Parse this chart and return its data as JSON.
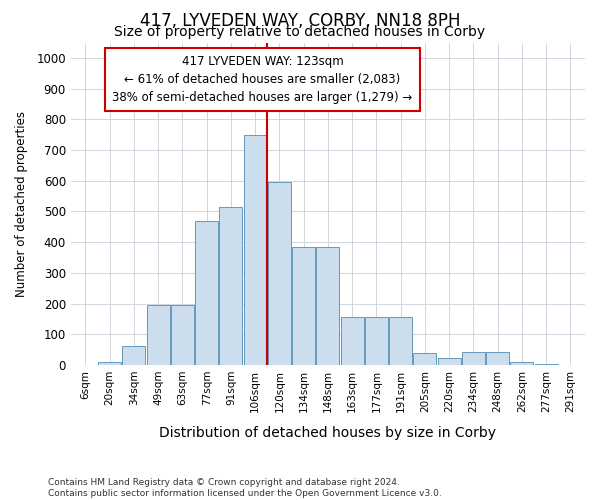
{
  "title": "417, LYVEDEN WAY, CORBY, NN18 8PH",
  "subtitle": "Size of property relative to detached houses in Corby",
  "xlabel": "Distribution of detached houses by size in Corby",
  "ylabel": "Number of detached properties",
  "categories": [
    "6sqm",
    "20sqm",
    "34sqm",
    "49sqm",
    "63sqm",
    "77sqm",
    "91sqm",
    "106sqm",
    "120sqm",
    "134sqm",
    "148sqm",
    "163sqm",
    "177sqm",
    "191sqm",
    "205sqm",
    "220sqm",
    "234sqm",
    "248sqm",
    "262sqm",
    "277sqm",
    "291sqm"
  ],
  "values": [
    0,
    10,
    62,
    195,
    195,
    470,
    515,
    750,
    595,
    385,
    385,
    155,
    155,
    155,
    40,
    23,
    42,
    42,
    10,
    4,
    2
  ],
  "bar_color": "#ccdded",
  "bar_edge_color": "#6699bb",
  "vline_color": "#cc0000",
  "annotation_line1": "417 LYVEDEN WAY: 123sqm",
  "annotation_line2": "← 61% of detached houses are smaller (2,083)",
  "annotation_line3": "38% of semi-detached houses are larger (1,279) →",
  "annotation_box_color": "#ffffff",
  "annotation_box_edge": "#cc0000",
  "ylim": [
    0,
    1050
  ],
  "yticks": [
    0,
    100,
    200,
    300,
    400,
    500,
    600,
    700,
    800,
    900,
    1000
  ],
  "footer": "Contains HM Land Registry data © Crown copyright and database right 2024.\nContains public sector information licensed under the Open Government Licence v3.0.",
  "bg_color": "#ffffff",
  "grid_color": "#c8d0d8",
  "title_fontsize": 12,
  "subtitle_fontsize": 10
}
